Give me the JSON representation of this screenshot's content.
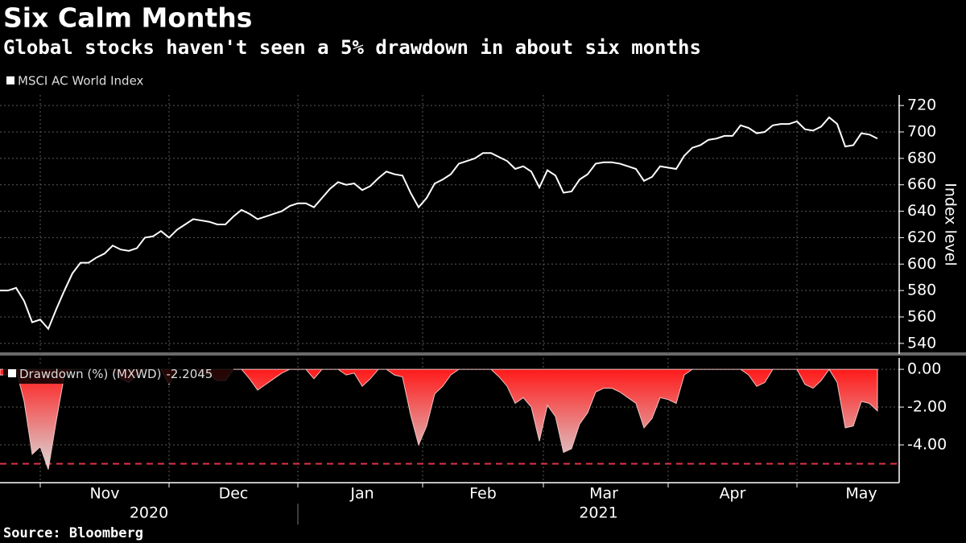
{
  "title": "Six Calm Months",
  "subtitle": "Global stocks haven't seen a 5% drawdown in about six months",
  "source": "Source: Bloomberg",
  "chart_data": [
    {
      "type": "line",
      "y_label": "Index level",
      "ylim": [
        532,
        728
      ],
      "yticks": [
        540,
        560,
        580,
        600,
        620,
        640,
        660,
        680,
        700,
        720
      ],
      "grid": true,
      "series": [
        {
          "name": "MSCI AC World Index",
          "color": "#ffffff",
          "values": [
            580,
            580,
            582,
            572,
            556,
            558,
            551,
            566,
            580,
            593,
            601,
            601,
            605,
            608,
            614,
            611,
            610,
            612,
            620,
            621,
            625,
            620,
            626,
            630,
            634,
            633,
            632,
            630,
            630,
            636,
            641,
            638,
            634,
            636,
            638,
            640,
            644,
            646,
            646,
            643,
            650,
            657,
            662,
            660,
            661,
            656,
            659,
            665,
            670,
            668,
            667,
            654,
            643,
            650,
            661,
            664,
            668,
            676,
            678,
            680,
            684,
            684,
            681,
            678,
            672,
            674,
            670,
            658,
            671,
            667,
            654,
            655,
            664,
            668,
            676,
            677,
            677,
            676,
            674,
            672,
            663,
            666,
            674,
            673,
            672,
            682,
            688,
            690,
            694,
            695,
            697,
            697,
            705,
            703,
            699,
            700,
            705,
            706,
            706,
            708,
            702,
            701,
            704,
            711,
            706,
            689,
            690,
            699,
            698,
            695
          ]
        }
      ]
    },
    {
      "type": "area",
      "ylim": [
        -6,
        0.6
      ],
      "yticks": [
        {
          "value": 0,
          "label": "0.00"
        },
        {
          "value": -2,
          "label": "-2.00"
        },
        {
          "value": -4,
          "label": "-4.00"
        }
      ],
      "grid": true,
      "reference_line": -5,
      "reference_color": "#e0334a",
      "categories": [
        null,
        null,
        null,
        null,
        null,
        null,
        null,
        null,
        null,
        null,
        null,
        null,
        null,
        "Nov",
        null,
        null,
        null,
        null,
        null,
        null,
        null,
        null,
        null,
        null,
        null,
        null,
        null,
        null,
        null,
        "Dec",
        null,
        null,
        null,
        null,
        null,
        null,
        null,
        null,
        null,
        null,
        null,
        null,
        null,
        null,
        null,
        "Jan",
        null,
        null,
        null,
        null,
        null,
        null,
        null,
        null,
        null,
        null,
        null,
        null,
        null,
        null,
        "Feb",
        null,
        null,
        null,
        null,
        null,
        null,
        null,
        null,
        null,
        null,
        null,
        null,
        null,
        null,
        "Mar",
        null,
        null,
        null,
        null,
        null,
        null,
        null,
        null,
        null,
        null,
        null,
        null,
        null,
        null,
        null,
        "Apr",
        null,
        null,
        null,
        null,
        null,
        null,
        null,
        null,
        null,
        null,
        null,
        null,
        null,
        null,
        null,
        "May",
        null,
        null
      ],
      "x_groups": [
        "2020",
        "2021"
      ],
      "series": [
        {
          "name": "Drawdown (%) (MXWD)",
          "color": "#ff1a1a",
          "values": [
            -0.3,
            -0.3,
            0,
            -1.7,
            -4.5,
            -4.1,
            -5.3,
            -2.7,
            -0.3,
            0,
            0,
            0,
            0,
            0,
            0,
            -0.5,
            -0.7,
            -0.3,
            0,
            0,
            0,
            -0.8,
            0,
            0,
            0,
            -0.2,
            -0.3,
            -0.6,
            -0.6,
            0,
            0,
            -0.5,
            -1.1,
            -0.8,
            -0.5,
            -0.2,
            0,
            0,
            0,
            -0.5,
            0,
            0,
            0,
            -0.3,
            -0.2,
            -0.9,
            -0.5,
            0,
            0,
            -0.3,
            -0.4,
            -2.4,
            -4,
            -3,
            -1.3,
            -0.9,
            -0.3,
            0,
            0,
            0,
            0,
            0,
            -0.4,
            -0.9,
            -1.8,
            -1.5,
            -2,
            -3.8,
            -1.9,
            -2.5,
            -4.4,
            -4.2,
            -2.9,
            -2.3,
            -1.2,
            -1,
            -1,
            -1.2,
            -1.5,
            -1.8,
            -3.1,
            -2.6,
            -1.5,
            -1.6,
            -1.8,
            -0.3,
            0,
            0,
            0,
            0,
            0,
            0,
            0,
            -0.3,
            -0.9,
            -0.7,
            0,
            0,
            0,
            0,
            -0.8,
            -1,
            -0.6,
            0,
            -0.7,
            -3.1,
            -3,
            -1.7,
            -1.8,
            -2.2045
          ]
        }
      ]
    }
  ]
}
